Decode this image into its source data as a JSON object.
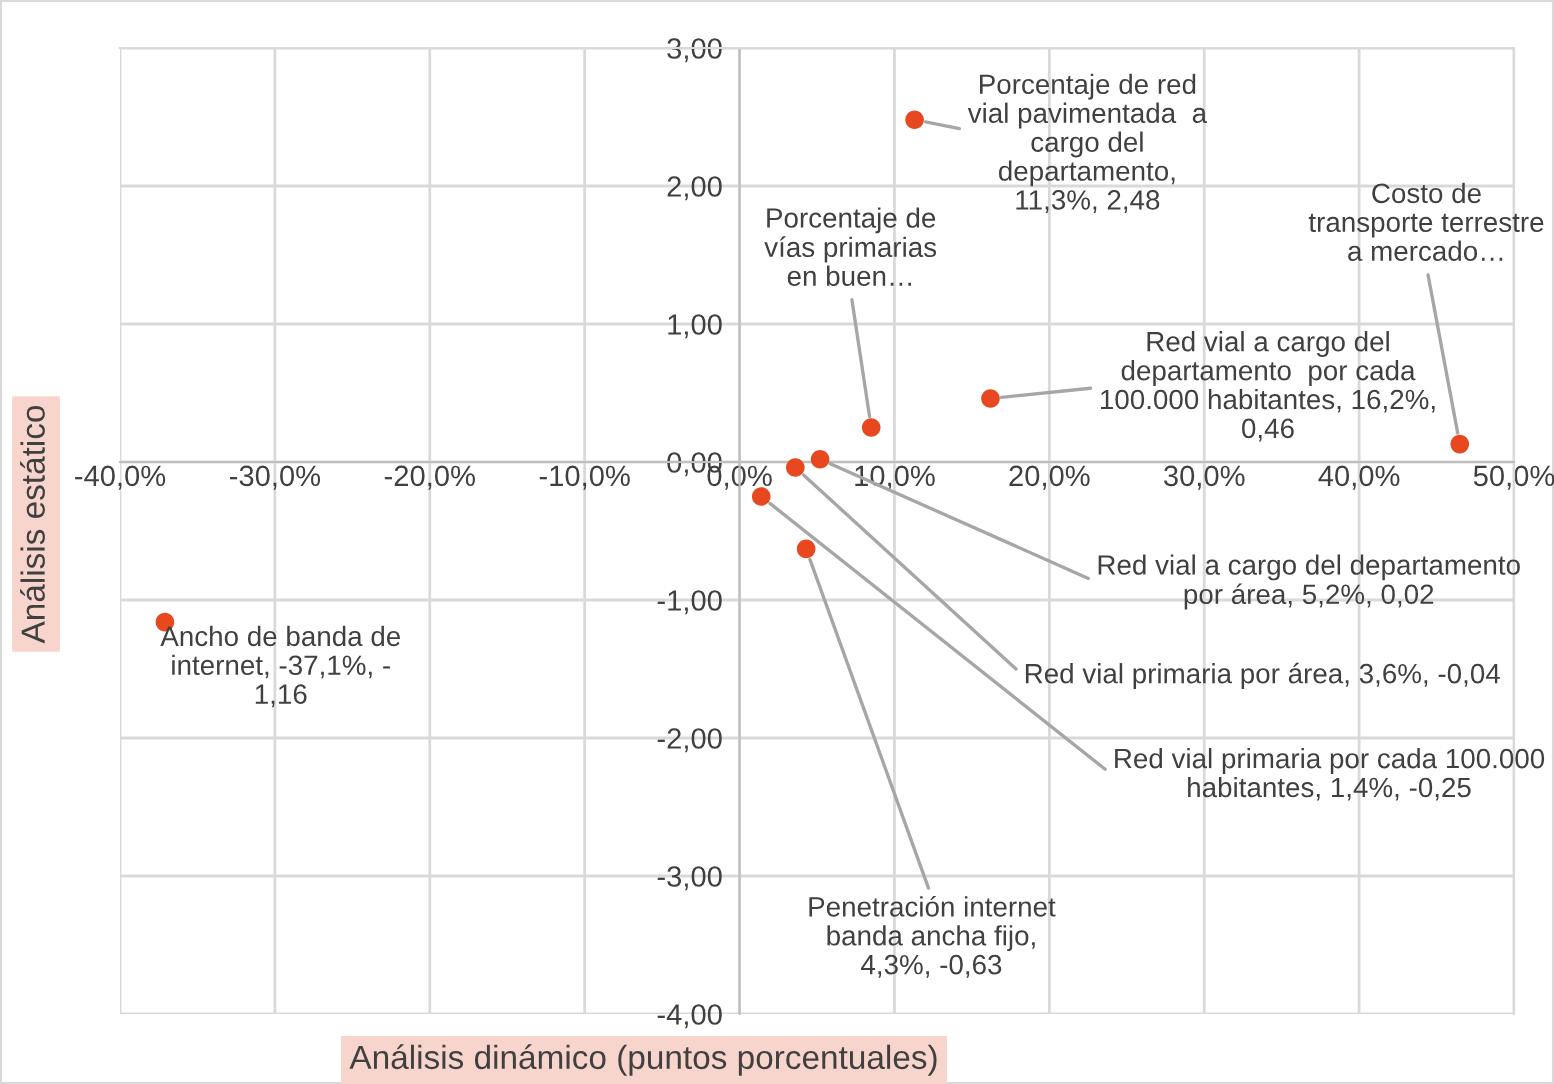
{
  "chart_data": {
    "type": "scatter",
    "xlabel": "Análisis dinámico (puntos porcentuales)",
    "ylabel": "Análisis estático",
    "series": [
      {
        "color": "#e8481f",
        "x": [
          -37.1,
          11.3,
          8.5,
          46.5,
          16.2,
          5.2,
          3.6,
          1.4,
          4.3
        ],
        "values": [
          -1.16,
          2.48,
          0.25,
          0.13,
          0.46,
          0.02,
          -0.04,
          -0.25,
          -0.63
        ]
      }
    ],
    "annotations": [
      {
        "text": "Ancho de banda de\ninternet, -37,1%, -\n1,16",
        "x": -37.1,
        "y": -1.16
      },
      {
        "text": "Porcentaje de red\nvial pavimentada  a\ncargo del\ndepartamento,\n11,3%, 2,48",
        "x": 11.3,
        "y": 2.48
      },
      {
        "text": "Porcentaje de\nvías primarias\nen buen…",
        "x": 8.5,
        "y": 0.25
      },
      {
        "text": "Costo de\ntransporte terrestre\na mercado…",
        "x": 46.5,
        "y": 0.13
      },
      {
        "text": "Red vial a cargo del\ndepartamento  por cada\n100.000 habitantes, 16,2%,\n0,46",
        "x": 16.2,
        "y": 0.46
      },
      {
        "text": "Red vial a cargo del departamento\npor área, 5,2%, 0,02",
        "x": 5.2,
        "y": 0.02
      },
      {
        "text": "Red vial primaria por área, 3,6%, -0,04",
        "x": 3.6,
        "y": -0.04
      },
      {
        "text": "Red vial primaria por cada 100.000\nhabitantes, 1,4%, -0,25",
        "x": 1.4,
        "y": -0.25
      },
      {
        "text": "Penetración internet\nbanda ancha fijo,\n4,3%, -0,63",
        "x": 4.3,
        "y": -0.63
      }
    ],
    "xlim": [
      -40,
      50
    ],
    "ylim": [
      -4,
      3
    ],
    "xticks": [
      {
        "value": -40,
        "label": "-40,0%"
      },
      {
        "value": -30,
        "label": "-30,0%"
      },
      {
        "value": -20,
        "label": "-20,0%"
      },
      {
        "value": -10,
        "label": "-10,0%"
      },
      {
        "value": 0,
        "label": "0,0%"
      },
      {
        "value": 10,
        "label": "10,0%"
      },
      {
        "value": 20,
        "label": "20,0%"
      },
      {
        "value": 30,
        "label": "30,0%"
      },
      {
        "value": 40,
        "label": "40,0%"
      },
      {
        "value": 50,
        "label": "50,0%"
      }
    ],
    "yticks": [
      {
        "value": -4,
        "label": "-4,00"
      },
      {
        "value": -3,
        "label": "-3,00"
      },
      {
        "value": -2,
        "label": "-2,00"
      },
      {
        "value": -1,
        "label": "-1,00"
      },
      {
        "value": 0,
        "label": "0,00"
      },
      {
        "value": 1,
        "label": "1,00"
      },
      {
        "value": 2,
        "label": "2,00"
      },
      {
        "value": 3,
        "label": "3,00"
      }
    ],
    "grid": true,
    "marker": "circle"
  }
}
